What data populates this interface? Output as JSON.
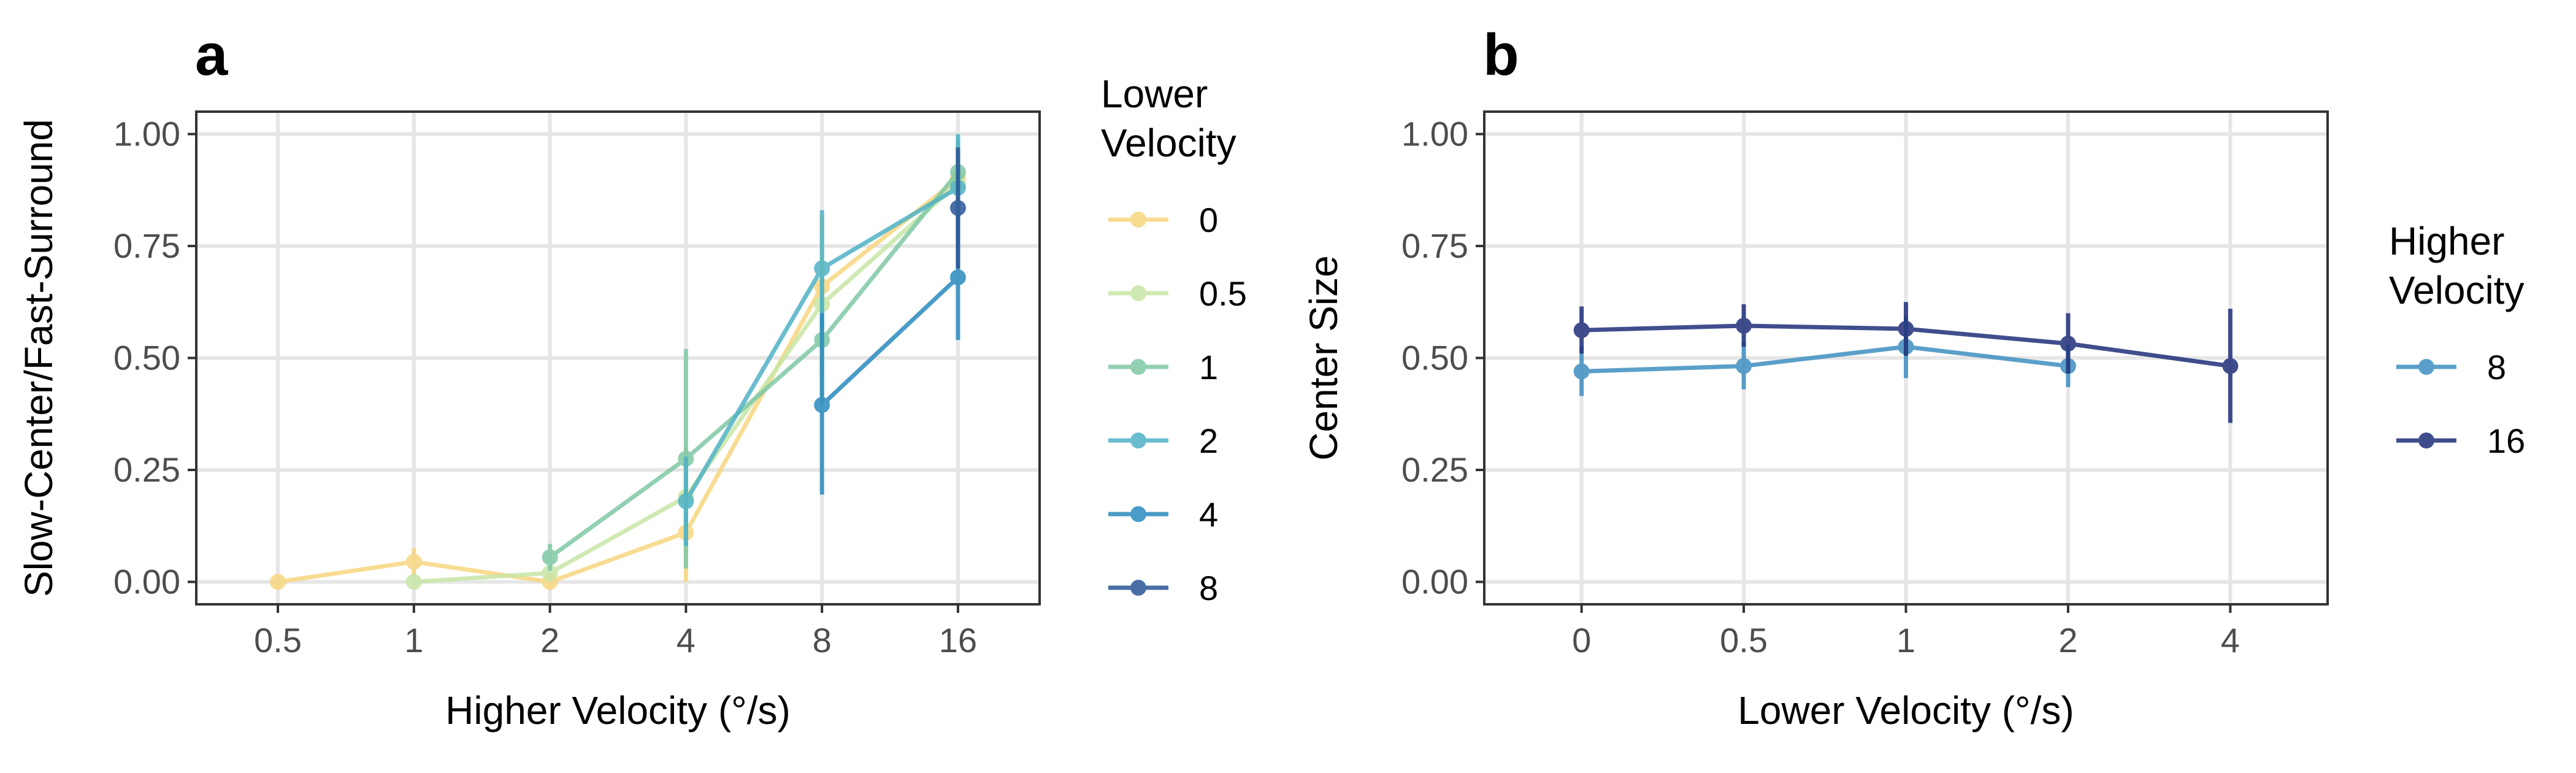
{
  "chart_data": [
    {
      "panel": "a",
      "type": "line",
      "xlabel": "Higher Velocity (°/s)",
      "ylabel": "Slow-Center/Fast-Surround",
      "x_categories": [
        "0.5",
        "1",
        "2",
        "4",
        "8",
        "16"
      ],
      "y_ticks": [
        "0.00",
        "0.25",
        "0.50",
        "0.75",
        "1.00"
      ],
      "ylim": [
        -0.05,
        1.05
      ],
      "grid": true,
      "legend": {
        "title": [
          "Lower",
          "Velocity"
        ],
        "placement": "right"
      },
      "series": [
        {
          "name": "0",
          "color": "#f7d67f",
          "points": [
            {
              "x": "0.5",
              "y": 0.0,
              "lo": 0.0,
              "hi": 0.0
            },
            {
              "x": "1",
              "y": 0.045,
              "lo": 0.015,
              "hi": 0.075
            },
            {
              "x": "2",
              "y": 0.0,
              "lo": -0.01,
              "hi": 0.01
            },
            {
              "x": "4",
              "y": 0.11,
              "lo": 0.0,
              "hi": 0.22
            },
            {
              "x": "8",
              "y": 0.66,
              "lo": 0.5,
              "hi": 0.82
            },
            {
              "x": "16",
              "y": 0.9,
              "lo": 0.83,
              "hi": 0.97
            }
          ]
        },
        {
          "name": "0.5",
          "color": "#c8e6a6",
          "points": [
            {
              "x": "1",
              "y": 0.0,
              "lo": -0.01,
              "hi": 0.01
            },
            {
              "x": "2",
              "y": 0.02,
              "lo": 0.0,
              "hi": 0.04
            },
            {
              "x": "4",
              "y": 0.19,
              "lo": 0.08,
              "hi": 0.3
            },
            {
              "x": "8",
              "y": 0.62,
              "lo": 0.46,
              "hi": 0.78
            },
            {
              "x": "16",
              "y": 0.89,
              "lo": 0.81,
              "hi": 0.97
            }
          ]
        },
        {
          "name": "1",
          "color": "#7fc8a5",
          "points": [
            {
              "x": "2",
              "y": 0.055,
              "lo": 0.025,
              "hi": 0.085
            },
            {
              "x": "4",
              "y": 0.275,
              "lo": 0.03,
              "hi": 0.52
            },
            {
              "x": "8",
              "y": 0.54,
              "lo": 0.4,
              "hi": 0.68
            },
            {
              "x": "16",
              "y": 0.915,
              "lo": 0.84,
              "hi": 0.99
            }
          ]
        },
        {
          "name": "2",
          "color": "#4fb2c6",
          "points": [
            {
              "x": "4",
              "y": 0.18,
              "lo": 0.08,
              "hi": 0.28
            },
            {
              "x": "8",
              "y": 0.7,
              "lo": 0.57,
              "hi": 0.83
            },
            {
              "x": "16",
              "y": 0.88,
              "lo": 0.76,
              "hi": 1.0
            }
          ]
        },
        {
          "name": "4",
          "color": "#2a8bbe",
          "points": [
            {
              "x": "8",
              "y": 0.395,
              "lo": 0.195,
              "hi": 0.6
            },
            {
              "x": "16",
              "y": 0.68,
              "lo": 0.54,
              "hi": 0.82
            }
          ]
        },
        {
          "name": "8",
          "color": "#2a5597",
          "points": [
            {
              "x": "16",
              "y": 0.835,
              "lo": 0.7,
              "hi": 0.97
            }
          ]
        }
      ]
    },
    {
      "panel": "b",
      "type": "line",
      "xlabel": "Lower Velocity (°/s)",
      "ylabel": "Center Size",
      "x_categories": [
        "0",
        "0.5",
        "1",
        "2",
        "4"
      ],
      "y_ticks": [
        "0.00",
        "0.25",
        "0.50",
        "0.75",
        "1.00"
      ],
      "ylim": [
        -0.05,
        1.05
      ],
      "grid": true,
      "legend": {
        "title": [
          "Higher",
          "Velocity"
        ],
        "placement": "right"
      },
      "series": [
        {
          "name": "8",
          "color": "#3e8fc0",
          "points": [
            {
              "x": "0",
              "y": 0.47,
              "lo": 0.415,
              "hi": 0.525
            },
            {
              "x": "0.5",
              "y": 0.482,
              "lo": 0.43,
              "hi": 0.535
            },
            {
              "x": "1",
              "y": 0.525,
              "lo": 0.455,
              "hi": 0.595
            },
            {
              "x": "2",
              "y": 0.482,
              "lo": 0.435,
              "hi": 0.53
            }
          ]
        },
        {
          "name": "16",
          "color": "#1f2f7a",
          "points": [
            {
              "x": "0",
              "y": 0.562,
              "lo": 0.51,
              "hi": 0.615
            },
            {
              "x": "0.5",
              "y": 0.572,
              "lo": 0.525,
              "hi": 0.62
            },
            {
              "x": "1",
              "y": 0.565,
              "lo": 0.505,
              "hi": 0.625
            },
            {
              "x": "2",
              "y": 0.532,
              "lo": 0.465,
              "hi": 0.6
            },
            {
              "x": "4",
              "y": 0.482,
              "lo": 0.355,
              "hi": 0.61
            }
          ]
        }
      ]
    }
  ]
}
